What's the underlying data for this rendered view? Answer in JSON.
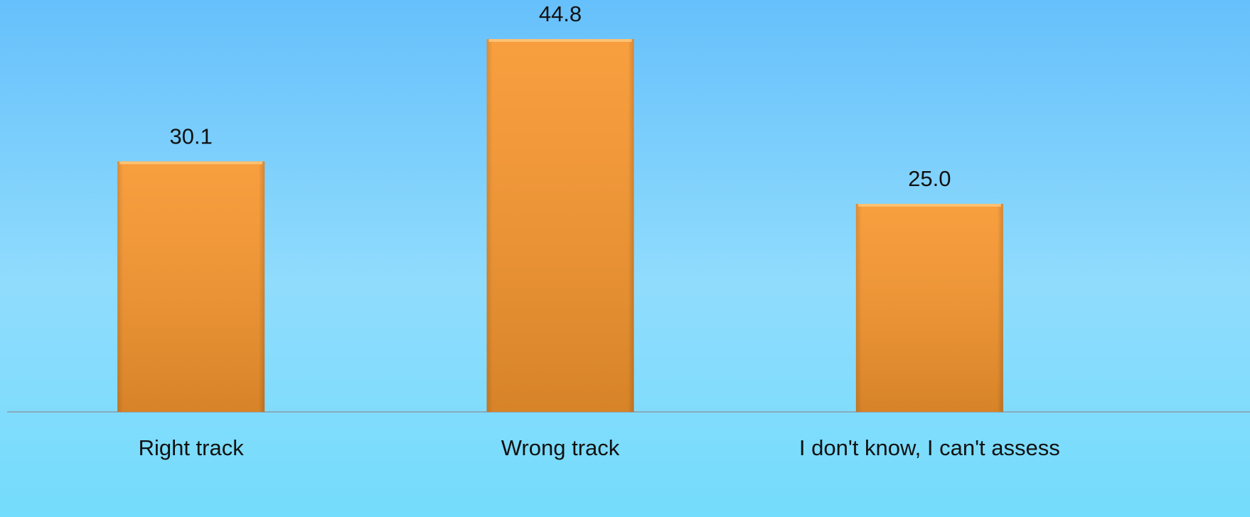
{
  "chart_data": {
    "type": "bar",
    "categories": [
      "Right track",
      "Wrong track",
      "I don't know, I can't assess"
    ],
    "values": [
      30.1,
      44.8,
      25
    ],
    "value_labels": [
      "30.1",
      "44.8",
      "25.0"
    ],
    "color": "#f7962e"
  }
}
